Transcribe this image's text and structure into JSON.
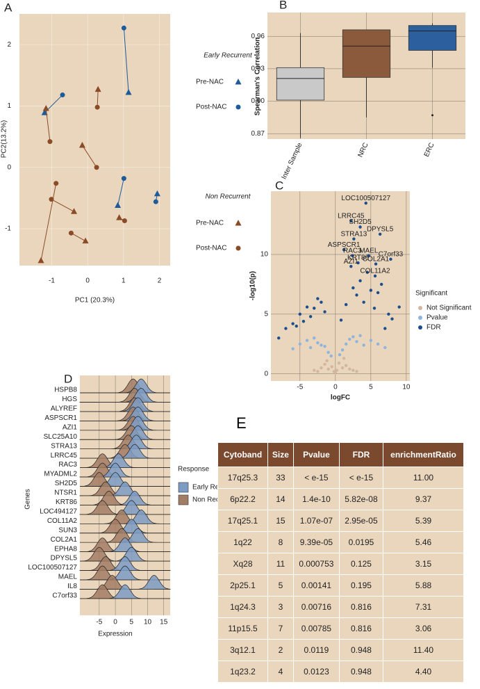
{
  "chart_data": [
    {
      "label": "A",
      "type": "paired-scatter",
      "x_label": "PC1 (20.3%)",
      "y_label": "PC2(13.2%)",
      "xlim": [
        -1.9,
        2.3
      ],
      "ylim": [
        -1.6,
        2.5
      ],
      "xticks": [
        -1,
        0,
        1,
        2
      ],
      "yticks": [
        -1,
        0,
        1,
        2
      ],
      "grid": true,
      "groups": [
        {
          "name": "Early Recurrent",
          "color": "#1f5a9a",
          "series": [
            {
              "name": "Pre-NAC",
              "marker": "triangle",
              "x": [
                1.14,
                -1.2,
                0.84,
                1.94
              ],
              "values": [
                1.22,
                0.89,
                -0.62,
                -0.43
              ]
            },
            {
              "name": "Post-NAC",
              "marker": "circle",
              "x": [
                1.01,
                -0.7,
                1.01,
                1.9
              ],
              "values": [
                2.27,
                1.18,
                -0.18,
                -0.56
              ]
            }
          ]
        },
        {
          "name": "Non Recurrent",
          "color": "#8a4b26",
          "series": [
            {
              "name": "Pre-NAC",
              "marker": "triangle",
              "x": [
                0.29,
                -1.16,
                -0.15,
                -1.3,
                -0.38,
                0.88,
                -0.06
              ],
              "values": [
                1.27,
                0.96,
                0.36,
                -1.52,
                -0.72,
                -0.82,
                -1.2
              ]
            },
            {
              "name": "Post-NAC",
              "marker": "circle",
              "x": [
                0.27,
                -1.05,
                0.25,
                -0.88,
                -1.01,
                1.03,
                -0.46
              ],
              "values": [
                0.98,
                0.42,
                0.0,
                -0.26,
                -0.52,
                -0.87,
                -1.07
              ]
            }
          ]
        }
      ]
    },
    {
      "label": "B",
      "type": "box",
      "y_label": "Spearman's Correlation",
      "categories": [
        "Inter Sample",
        "NRC",
        "ERC"
      ],
      "colors": [
        "#c9c9c9",
        "#8b5a3c",
        "#2c5f9e"
      ],
      "min": [
        0.866,
        0.885,
        0.931
      ],
      "q1": [
        0.901,
        0.922,
        0.947
      ],
      "median": [
        0.921,
        0.951,
        0.965
      ],
      "q3": [
        0.931,
        0.966,
        0.97
      ],
      "max": [
        0.963,
        0.966,
        0.972
      ],
      "outliers": [
        [],
        [],
        [
          0.887
        ]
      ],
      "ylim": [
        0.865,
        0.982
      ],
      "yticks": [
        0.87,
        {
          "value": 0.9,
          "label": "0.90"
        },
        0.93,
        0.96
      ],
      "grid": true
    },
    {
      "label": "C",
      "type": "volcano",
      "x_label": "logFC",
      "y_label": "-log10(p)",
      "legend_title": "Significant",
      "xlim": [
        -9.1,
        10.5
      ],
      "ylim": [
        -0.6,
        15.3
      ],
      "xticks": [
        -5,
        0,
        5,
        10
      ],
      "yticks": [
        0,
        5,
        10
      ],
      "grid": true,
      "series": [
        {
          "name": "Not Significant",
          "color": "#d4b6a0",
          "x": [
            -3,
            -2,
            -1.5,
            -1,
            -0.5,
            -0.2,
            0.2,
            0.5,
            1,
            1.5,
            2,
            2.5,
            -2.5,
            0,
            3,
            -1.2,
            1.2
          ],
          "values": [
            0.3,
            0.5,
            0.8,
            0.4,
            0.6,
            0.2,
            0.3,
            0.9,
            0.5,
            0.7,
            0.4,
            0.3,
            0.2,
            0.1,
            0.2,
            1.1,
            1.3
          ]
        },
        {
          "name": "Pvalue",
          "color": "#8fb4dc",
          "x": [
            -6,
            -5,
            -4,
            -3.5,
            -3,
            -2.5,
            -2,
            -1.5,
            -1,
            -0.6,
            0.6,
            1,
            1.5,
            2,
            2.5,
            3,
            3.5,
            4,
            5,
            6,
            7
          ],
          "values": [
            2.1,
            2.5,
            2.8,
            2.2,
            3.0,
            2.6,
            2.4,
            2.3,
            1.8,
            1.5,
            1.6,
            2.0,
            2.5,
            2.9,
            3.1,
            2.7,
            3.2,
            2.4,
            2.8,
            2.5,
            2.2
          ]
        },
        {
          "name": "FDR",
          "color": "#1c4d8c",
          "x": [
            -8,
            -7,
            -6,
            -5.5,
            -5,
            -4.5,
            -4,
            -3.5,
            -3,
            -2.5,
            -2,
            -1.5,
            0.8,
            1.5,
            2.5,
            3,
            3.5,
            4,
            4.5,
            5,
            5.5,
            6,
            6.5,
            7,
            7.5,
            8,
            9
          ],
          "values": [
            3.0,
            3.8,
            4.2,
            4.0,
            5.0,
            4.4,
            5.6,
            4.8,
            5.5,
            6.3,
            6.0,
            5.2,
            4.5,
            5.8,
            7.2,
            6.6,
            7.8,
            6.0,
            8.5,
            7.0,
            5.5,
            6.8,
            7.5,
            3.8,
            5.0,
            4.6,
            5.6
          ]
        }
      ],
      "annotations": [
        {
          "text": "LOC100507127",
          "x": 4.3,
          "y": 14.3
        },
        {
          "text": "LRRC45",
          "x": 2.2,
          "y": 12.8
        },
        {
          "text": "SH2D5",
          "x": 3.5,
          "y": 12.3
        },
        {
          "text": "DPYSL5",
          "x": 6.3,
          "y": 11.7
        },
        {
          "text": "STRA13",
          "x": 2.6,
          "y": 11.3
        },
        {
          "text": "ASPSCR1",
          "x": 1.2,
          "y": 10.4
        },
        {
          "text": "RAC3",
          "x": 2.4,
          "y": 9.9
        },
        {
          "text": "MAEL",
          "x": 4.7,
          "y": 9.9
        },
        {
          "text": "C7orf33",
          "x": 7.8,
          "y": 9.6
        },
        {
          "text": "KRT86",
          "x": 3.2,
          "y": 9.3
        },
        {
          "text": "COL2A1",
          "x": 5.7,
          "y": 9.2
        },
        {
          "text": "AZI1",
          "x": 2.2,
          "y": 9.0
        },
        {
          "text": "COL11A2",
          "x": 5.6,
          "y": 8.2
        }
      ]
    },
    {
      "label": "D",
      "type": "ridgeline",
      "x_label": "Expression",
      "y_label": "Genes",
      "legend_title": "Response",
      "xlim": [
        -11,
        17
      ],
      "xticks": [
        -5,
        0,
        5,
        10,
        15
      ],
      "grid": true,
      "categories": [
        "HSPB8",
        "HGS",
        "ALYREF",
        "ASPSCR1",
        "AZI1",
        "SLC25A10",
        "STRA13",
        "LRRC45",
        "RAC3",
        "MYADML2",
        "SH2D5",
        "NTSR1",
        "KRT86",
        "LOC494127",
        "COL11A2",
        "SUN3",
        "COL2A1",
        "EPHA8",
        "DPYSL5",
        "LOC100507127",
        "MAEL",
        "IL8",
        "C7orf33"
      ],
      "series": [
        {
          "name": "Early Recurrent",
          "color": "#7c9cc4",
          "values": [
            8,
            8,
            7,
            7,
            7,
            7,
            6.5,
            6,
            1,
            0,
            0,
            3,
            6,
            5,
            8,
            5,
            7,
            3,
            5,
            3,
            3,
            12,
            3
          ]
        },
        {
          "name": "Non Recurrent",
          "color": "#a27c64",
          "values": [
            5.5,
            6,
            6,
            5.5,
            5.5,
            5,
            4,
            3,
            -4,
            -4,
            -5,
            -3,
            -2,
            -4,
            2,
            0,
            2,
            -4,
            -5,
            -3,
            -4,
            -1,
            -4
          ]
        }
      ]
    }
  ],
  "table": {
    "label": "E",
    "columns": [
      "Cytoband",
      "Size",
      "Pvalue",
      "FDR",
      "enrichmentRatio"
    ],
    "rows": [
      [
        "17q25.3",
        "33",
        "< e-15",
        "< e-15",
        "11.00"
      ],
      [
        "6p22.2",
        "14",
        "1.4e-10",
        "5.82e-08",
        "9.37"
      ],
      [
        "17q25.1",
        "15",
        "1.07e-07",
        "2.95e-05",
        "5.39"
      ],
      [
        "1q22",
        "8",
        "9.39e-05",
        "0.0195",
        "5.46"
      ],
      [
        "Xq28",
        "11",
        "0.000753",
        "0.125",
        "3.15"
      ],
      [
        "2p25.1",
        "5",
        "0.00141",
        "0.195",
        "5.88"
      ],
      [
        "1q24.3",
        "3",
        "0.00716",
        "0.816",
        "7.31"
      ],
      [
        "11p15.5",
        "7",
        "0.00785",
        "0.816",
        "3.06"
      ],
      [
        "3q12.1",
        "2",
        "0.0119",
        "0.948",
        "11.40"
      ],
      [
        "1q23.2",
        "4",
        "0.0123",
        "0.948",
        "4.40"
      ]
    ]
  }
}
